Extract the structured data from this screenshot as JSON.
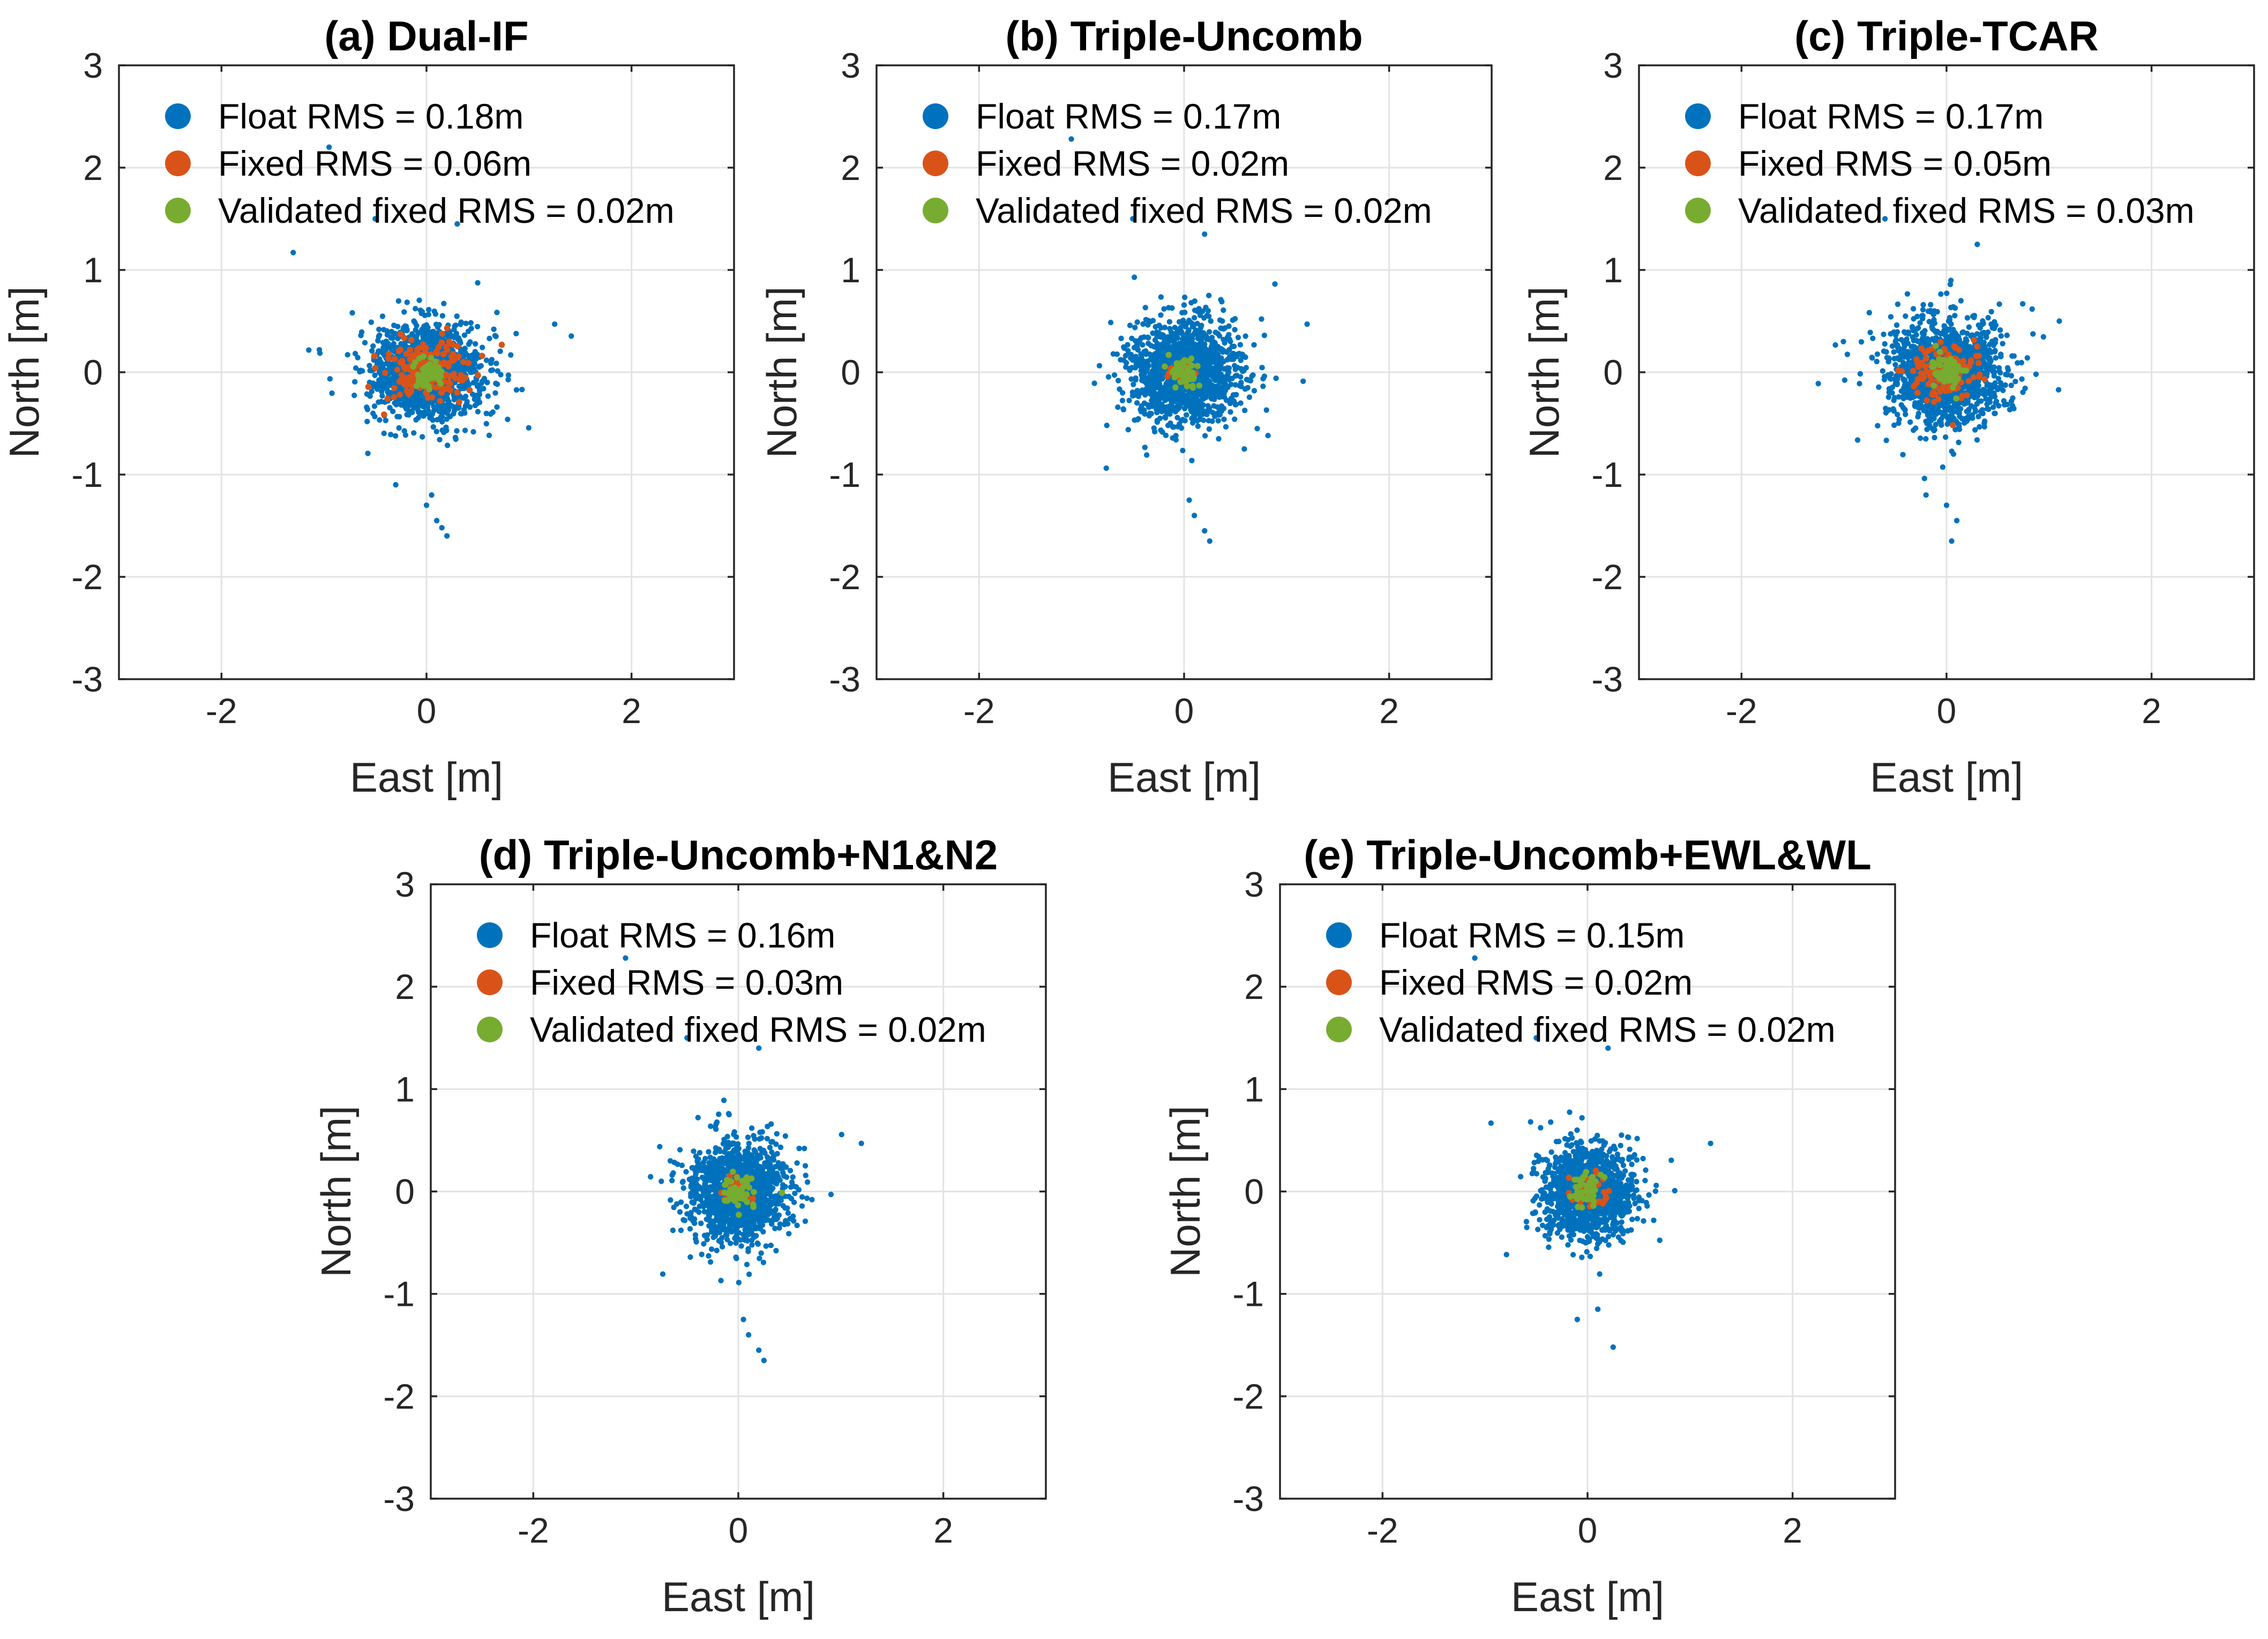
{
  "figure": {
    "colors": {
      "float": "#0072BD",
      "fixed": "#D95319",
      "validated": "#77AC30"
    }
  },
  "chart_data": [
    {
      "type": "scatter",
      "title": "(a) Dual-IF",
      "xlabel": "East [m]",
      "ylabel": "North [m]",
      "xlim": [
        -3,
        3
      ],
      "ylim": [
        -3,
        3
      ],
      "xticks": [
        -2,
        0,
        2
      ],
      "xtick_labels": [
        "-2",
        "0",
        "2"
      ],
      "yticks": [
        -3,
        -2,
        -1,
        0,
        1,
        2,
        3
      ],
      "ytick_labels": [
        "-3",
        "-2",
        "-1",
        "0",
        "1",
        "2",
        "3"
      ],
      "grid": true,
      "legend_position": "top-left",
      "series": [
        {
          "name": "Float RMS = 0.18m",
          "spread": [
            0.26,
            0.22
          ],
          "count": 1500,
          "outliers": [
            [
              -0.95,
              2.2
            ],
            [
              -1.3,
              1.17
            ],
            [
              -0.5,
              1.5
            ],
            [
              0.3,
              1.45
            ],
            [
              1.25,
              0.47
            ],
            [
              0.2,
              -1.6
            ],
            [
              0.05,
              -1.2
            ],
            [
              -0.3,
              -1.1
            ],
            [
              0.0,
              -1.3
            ],
            [
              0.1,
              -1.45
            ],
            [
              0.15,
              -1.52
            ]
          ]
        },
        {
          "name": "Fixed RMS = 0.06m",
          "spread": [
            0.2,
            0.15
          ],
          "count": 200,
          "outliers": []
        },
        {
          "name": "Validated fixed RMS = 0.02m",
          "spread": [
            0.07,
            0.07
          ],
          "count": 60,
          "outliers": []
        }
      ]
    },
    {
      "type": "scatter",
      "title": "(b) Triple-Uncomb",
      "xlabel": "East [m]",
      "ylabel": "North [m]",
      "xlim": [
        -3,
        3
      ],
      "ylim": [
        -3,
        3
      ],
      "xticks": [
        -2,
        0,
        2
      ],
      "xtick_labels": [
        "-2",
        "0",
        "2"
      ],
      "yticks": [
        -3,
        -2,
        -1,
        0,
        1,
        2,
        3
      ],
      "ytick_labels": [
        "-3",
        "-2",
        "-1",
        "0",
        "1",
        "2",
        "3"
      ],
      "grid": true,
      "legend_position": "top-left",
      "series": [
        {
          "name": "Float RMS = 0.17m",
          "spread": [
            0.25,
            0.24
          ],
          "count": 1500,
          "outliers": [
            [
              -1.1,
              2.28
            ],
            [
              -0.5,
              1.5
            ],
            [
              0.2,
              1.35
            ],
            [
              1.2,
              0.47
            ],
            [
              0.25,
              -1.65
            ],
            [
              0.2,
              -1.55
            ],
            [
              0.1,
              -1.4
            ],
            [
              0.05,
              -1.25
            ]
          ]
        },
        {
          "name": "Fixed RMS = 0.02m",
          "spread": [
            0.05,
            0.05
          ],
          "count": 30,
          "outliers": []
        },
        {
          "name": "Validated fixed RMS = 0.02m",
          "spread": [
            0.08,
            0.08
          ],
          "count": 50,
          "outliers": []
        }
      ]
    },
    {
      "type": "scatter",
      "title": "(c) Triple-TCAR",
      "xlabel": "East [m]",
      "ylabel": "North [m]",
      "xlim": [
        -3,
        3
      ],
      "ylim": [
        -3,
        3
      ],
      "xticks": [
        -2,
        0,
        2
      ],
      "xtick_labels": [
        "-2",
        "0",
        "2"
      ],
      "yticks": [
        -3,
        -2,
        -1,
        0,
        1,
        2,
        3
      ],
      "ytick_labels": [
        "-3",
        "-2",
        "-1",
        "0",
        "1",
        "2",
        "3"
      ],
      "grid": true,
      "legend_position": "top-left",
      "series": [
        {
          "name": "Float RMS = 0.17m",
          "spread": [
            0.27,
            0.24
          ],
          "count": 1500,
          "outliers": [
            [
              -0.6,
              1.5
            ],
            [
              0.3,
              1.25
            ],
            [
              1.1,
              0.5
            ],
            [
              0.05,
              -1.65
            ],
            [
              0.1,
              -1.45
            ],
            [
              -0.2,
              -1.2
            ],
            [
              0.0,
              -1.3
            ]
          ]
        },
        {
          "name": "Fixed RMS = 0.05m",
          "spread": [
            0.17,
            0.12
          ],
          "count": 160,
          "outliers": []
        },
        {
          "name": "Validated fixed RMS = 0.03m",
          "spread": [
            0.08,
            0.08
          ],
          "count": 60,
          "outliers": []
        }
      ]
    },
    {
      "type": "scatter",
      "title": "(d) Triple-Uncomb+N1&N2",
      "xlabel": "East [m]",
      "ylabel": "North [m]",
      "xlim": [
        -3,
        3
      ],
      "ylim": [
        -3,
        3
      ],
      "xticks": [
        -2,
        0,
        2
      ],
      "xtick_labels": [
        "-2",
        "0",
        "2"
      ],
      "yticks": [
        -3,
        -2,
        -1,
        0,
        1,
        2,
        3
      ],
      "ytick_labels": [
        "-3",
        "-2",
        "-1",
        "0",
        "1",
        "2",
        "3"
      ],
      "grid": true,
      "legend_position": "top-left",
      "series": [
        {
          "name": "Float RMS = 0.16m",
          "spread": [
            0.23,
            0.23
          ],
          "count": 1400,
          "outliers": [
            [
              -1.1,
              2.28
            ],
            [
              -0.5,
              1.5
            ],
            [
              0.2,
              1.4
            ],
            [
              1.2,
              0.47
            ],
            [
              0.25,
              -1.65
            ],
            [
              0.2,
              -1.55
            ],
            [
              0.1,
              -1.4
            ],
            [
              0.05,
              -1.25
            ]
          ]
        },
        {
          "name": "Fixed RMS = 0.03m",
          "spread": [
            0.08,
            0.06
          ],
          "count": 40,
          "outliers": []
        },
        {
          "name": "Validated fixed RMS = 0.02m",
          "spread": [
            0.08,
            0.08
          ],
          "count": 50,
          "outliers": []
        }
      ]
    },
    {
      "type": "scatter",
      "title": "(e) Triple-Uncomb+EWL&WL",
      "xlabel": "East [m]",
      "ylabel": "North [m]",
      "xlim": [
        -3,
        3
      ],
      "ylim": [
        -3,
        3
      ],
      "xticks": [
        -2,
        0,
        2
      ],
      "xtick_labels": [
        "-2",
        "0",
        "2"
      ],
      "yticks": [
        -3,
        -2,
        -1,
        0,
        1,
        2,
        3
      ],
      "ytick_labels": [
        "-3",
        "-2",
        "-1",
        "0",
        "1",
        "2",
        "3"
      ],
      "grid": true,
      "legend_position": "top-left",
      "series": [
        {
          "name": "Float RMS = 0.15m",
          "spread": [
            0.22,
            0.22
          ],
          "count": 1300,
          "outliers": [
            [
              -1.1,
              2.28
            ],
            [
              -0.5,
              1.5
            ],
            [
              0.2,
              1.4
            ],
            [
              1.2,
              0.47
            ],
            [
              0.25,
              -1.52
            ],
            [
              0.1,
              -1.15
            ],
            [
              -0.1,
              -1.25
            ]
          ]
        },
        {
          "name": "Fixed RMS = 0.02m",
          "spread": [
            0.08,
            0.08
          ],
          "count": 35,
          "outliers": []
        },
        {
          "name": "Validated fixed RMS = 0.02m",
          "spread": [
            0.08,
            0.08
          ],
          "count": 50,
          "outliers": []
        }
      ]
    }
  ]
}
